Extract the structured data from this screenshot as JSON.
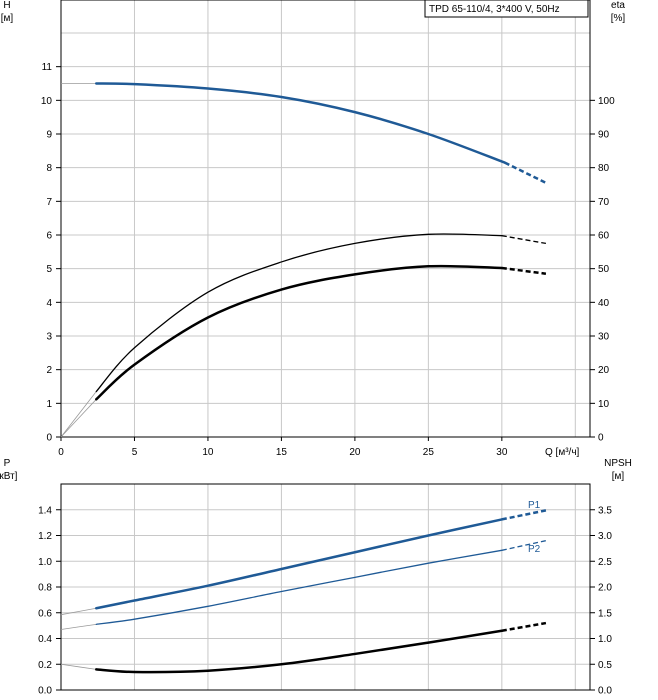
{
  "chart_data": {
    "model_label": "TPD 65-110/4, 3*400 V, 50Hz",
    "colors": {
      "blue": "#1f5a96",
      "black": "#000000",
      "grid": "#c8c8c8"
    },
    "top": {
      "type": "line",
      "x_axis": {
        "label": "Q [м³/ч]",
        "ticks": [
          "0",
          "5",
          "10",
          "15",
          "20",
          "25",
          "30"
        ],
        "range": [
          0,
          36
        ]
      },
      "y_left": {
        "label_line1": "H",
        "label_line2": "[м]",
        "ticks": [
          "0",
          "1",
          "2",
          "3",
          "4",
          "5",
          "6",
          "7",
          "8",
          "9",
          "10",
          "11"
        ],
        "range": [
          0,
          12
        ]
      },
      "y_right": {
        "label_line1": "eta",
        "label_line2": "[%]",
        "ticks": [
          "0",
          "10",
          "20",
          "30",
          "40",
          "50",
          "60",
          "70",
          "80",
          "90",
          "100"
        ],
        "range": [
          0,
          120
        ]
      },
      "series": [
        {
          "role": "head",
          "axis": "left",
          "color": "#1f5a96",
          "width": 2.5,
          "x": [
            0,
            2.4,
            5,
            10,
            15,
            20,
            25,
            30.2
          ],
          "y": [
            10.5,
            10.5,
            10.48,
            10.35,
            10.1,
            9.65,
            9.0,
            8.15
          ],
          "ext_x": [
            30.2,
            33
          ],
          "ext_y": [
            8.15,
            7.55
          ]
        },
        {
          "role": "efficiency-thin",
          "axis": "right",
          "color": "#000000",
          "width": 1.3,
          "x": [
            0,
            2.4,
            5,
            10,
            15,
            20,
            25,
            30
          ],
          "y": [
            0,
            13.5,
            26.5,
            43,
            52,
            57.5,
            60.2,
            59.8
          ],
          "ext_x": [
            30,
            33
          ],
          "ext_y": [
            59.8,
            57.5
          ]
        },
        {
          "role": "efficiency-thick",
          "axis": "right",
          "color": "#000000",
          "width": 2.5,
          "x": [
            0,
            2.4,
            5,
            10,
            15,
            20,
            25,
            30
          ],
          "y": [
            0,
            11.2,
            21.5,
            35.5,
            43.8,
            48.3,
            50.7,
            50.2
          ],
          "ext_x": [
            30,
            33
          ],
          "ext_y": [
            50.2,
            48.5
          ]
        }
      ]
    },
    "bottom": {
      "type": "line",
      "y_left": {
        "label_line1": "P",
        "label_line2": "[кВт]",
        "ticks": [
          "0.0",
          "0.2",
          "0.4",
          "0.6",
          "0.8",
          "1.0",
          "1.2",
          "1.4"
        ],
        "range": [
          0,
          1.6
        ]
      },
      "y_right": {
        "label_line1": "NPSH",
        "label_line2": "[м]",
        "ticks": [
          "0.0",
          "0.5",
          "1.0",
          "1.5",
          "2.0",
          "2.5",
          "3.0",
          "3.5"
        ],
        "range": [
          0,
          4
        ]
      },
      "series": [
        {
          "name": "P1",
          "axis": "left",
          "color": "#1f5a96",
          "width": 2.5,
          "x": [
            0,
            2.4,
            5,
            10,
            15,
            20,
            25,
            30
          ],
          "y": [
            0.585,
            0.635,
            0.695,
            0.81,
            0.94,
            1.07,
            1.2,
            1.325
          ],
          "ext_x": [
            30,
            33
          ],
          "ext_y": [
            1.325,
            1.395
          ]
        },
        {
          "name": "P2",
          "axis": "left",
          "color": "#1f5a96",
          "width": 1.3,
          "x": [
            0,
            2.4,
            5,
            10,
            15,
            20,
            25,
            30
          ],
          "y": [
            0.47,
            0.51,
            0.55,
            0.65,
            0.765,
            0.875,
            0.985,
            1.085
          ],
          "ext_x": [
            30,
            33
          ],
          "ext_y": [
            1.085,
            1.16
          ]
        },
        {
          "role": "npsh",
          "axis": "right",
          "color": "#000000",
          "width": 2.5,
          "x": [
            0,
            2.4,
            5,
            10,
            15,
            20,
            25,
            30
          ],
          "y": [
            0.5,
            0.4,
            0.35,
            0.375,
            0.5,
            0.7,
            0.92,
            1.15
          ],
          "ext_x": [
            30,
            33
          ],
          "ext_y": [
            1.15,
            1.3
          ]
        }
      ]
    }
  }
}
